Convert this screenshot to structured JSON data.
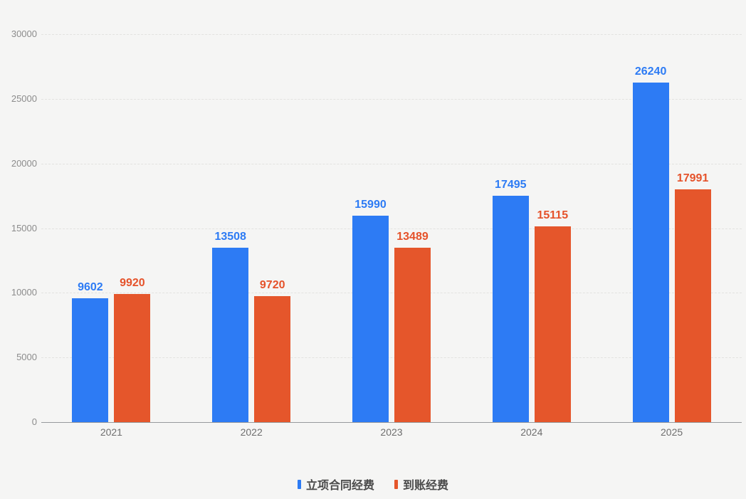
{
  "chart_data": {
    "type": "bar",
    "title": "",
    "categories": [
      "2021",
      "2022",
      "2023",
      "2024",
      "2025"
    ],
    "series": [
      {
        "name": "立项合同经费",
        "color": "#2d7bf4",
        "label_color": "#2d7bf4",
        "values": [
          9602,
          13508,
          15990,
          17495,
          26240
        ]
      },
      {
        "name": "到账经费",
        "color": "#e5562b",
        "label_color": "#e5522a",
        "values": [
          9920,
          9720,
          13489,
          15115,
          17991
        ]
      }
    ],
    "ylim": [
      0,
      30000
    ],
    "y_ticks": [
      0,
      5000,
      10000,
      15000,
      20000,
      25000,
      30000
    ],
    "xlabel": "",
    "ylabel": "",
    "grid": "horizontal-dashed",
    "legend_position": "bottom-center",
    "background_color": "#f5f5f4",
    "axis_line_color": "#97999c",
    "tick_label_color": "#8c8c8c",
    "category_label_color": "#6e6e6e",
    "data_labels_shown": true
  }
}
